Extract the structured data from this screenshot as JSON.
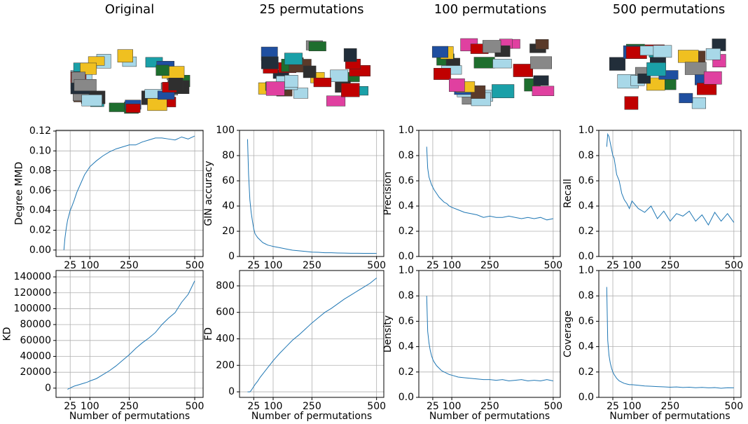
{
  "columns": [
    {
      "title": "Original"
    },
    {
      "title": "25 permutations"
    },
    {
      "title": "100 permutations"
    },
    {
      "title": "500 permutations"
    }
  ],
  "chart_data": [
    {
      "type": "line",
      "ylabel": "Degree MMD",
      "color": "#1f77b4",
      "grid": true,
      "x": [
        1,
        5,
        10,
        15,
        20,
        25,
        30,
        40,
        50,
        60,
        70,
        80,
        90,
        100,
        125,
        150,
        175,
        200,
        225,
        250,
        275,
        300,
        325,
        350,
        375,
        400,
        425,
        450,
        475,
        500
      ],
      "values": [
        0,
        0.012,
        0.022,
        0.03,
        0.035,
        0.04,
        0.043,
        0.05,
        0.058,
        0.064,
        0.07,
        0.076,
        0.08,
        0.084,
        0.09,
        0.095,
        0.099,
        0.102,
        0.104,
        0.106,
        0.106,
        0.109,
        0.111,
        0.113,
        0.113,
        0.112,
        0.111,
        0.114,
        0.112,
        0.115
      ],
      "xlim": [
        -29,
        532
      ],
      "xticks": [
        25,
        100,
        250,
        500
      ],
      "ylim": [
        -0.0065,
        0.1207
      ],
      "yticks": [
        {
          "value": 0,
          "label": "0.00"
        },
        {
          "value": 0.02,
          "label": "0.02"
        },
        {
          "value": 0.04,
          "label": "0.04"
        },
        {
          "value": 0.06,
          "label": "0.06"
        },
        {
          "value": 0.08,
          "label": "0.08"
        },
        {
          "value": 0.1,
          "label": "0.10"
        },
        {
          "value": 0.12,
          "label": "0.12"
        }
      ]
    },
    {
      "type": "line",
      "ylabel": "GIN accuracy",
      "color": "#1f77b4",
      "grid": true,
      "x": [
        1,
        5,
        10,
        15,
        20,
        25,
        30,
        40,
        50,
        60,
        70,
        80,
        90,
        100,
        125,
        150,
        175,
        200,
        225,
        250,
        275,
        300,
        325,
        350,
        375,
        400,
        425,
        450,
        475,
        500
      ],
      "values": [
        93,
        65,
        45,
        35,
        28,
        22,
        18,
        15,
        13,
        11,
        10,
        9,
        8.5,
        8,
        7,
        6,
        5,
        4.5,
        4,
        3.5,
        3.3,
        3,
        3,
        2.8,
        2.7,
        2.6,
        2.6,
        2.5,
        2.5,
        2.4
      ],
      "xlim": [
        -30,
        528
      ],
      "xticks": [
        25,
        100,
        250,
        500
      ],
      "ylim": [
        0,
        100
      ],
      "yticks": [
        0,
        20,
        40,
        60,
        80,
        100
      ]
    },
    {
      "type": "line",
      "ylabel": "Precision",
      "color": "#1f77b4",
      "grid": true,
      "x": [
        1,
        5,
        10,
        15,
        20,
        25,
        30,
        40,
        50,
        60,
        70,
        80,
        90,
        100,
        125,
        150,
        175,
        200,
        225,
        250,
        275,
        300,
        325,
        350,
        375,
        400,
        425,
        450,
        475,
        500
      ],
      "values": [
        0.87,
        0.7,
        0.63,
        0.6,
        0.57,
        0.55,
        0.53,
        0.5,
        0.47,
        0.45,
        0.43,
        0.42,
        0.4,
        0.39,
        0.37,
        0.35,
        0.34,
        0.33,
        0.31,
        0.32,
        0.31,
        0.31,
        0.32,
        0.31,
        0.3,
        0.31,
        0.3,
        0.31,
        0.29,
        0.3
      ],
      "xlim": [
        -30,
        528
      ],
      "xticks": [
        25,
        100,
        250,
        500
      ],
      "ylim": [
        0,
        1
      ],
      "yticks": [
        {
          "value": 0,
          "label": "0.0"
        },
        0.2,
        0.4,
        0.6,
        0.8,
        {
          "value": 1,
          "label": "1.0"
        }
      ]
    },
    {
      "type": "line",
      "ylabel": "Recall",
      "color": "#1f77b4",
      "grid": true,
      "x": [
        1,
        5,
        10,
        15,
        20,
        25,
        30,
        40,
        50,
        60,
        70,
        80,
        90,
        100,
        125,
        150,
        175,
        200,
        225,
        250,
        275,
        300,
        325,
        350,
        375,
        400,
        425,
        450,
        475,
        500
      ],
      "values": [
        0.87,
        0.97,
        0.95,
        0.9,
        0.85,
        0.8,
        0.78,
        0.65,
        0.6,
        0.5,
        0.45,
        0.42,
        0.38,
        0.44,
        0.38,
        0.35,
        0.4,
        0.3,
        0.36,
        0.28,
        0.34,
        0.32,
        0.36,
        0.28,
        0.33,
        0.25,
        0.35,
        0.28,
        0.34,
        0.27
      ],
      "xlim": [
        -30,
        528
      ],
      "xticks": [
        25,
        100,
        250,
        500
      ],
      "ylim": [
        0,
        1
      ],
      "yticks": [
        {
          "value": 0,
          "label": "0.0"
        },
        0.2,
        0.4,
        0.6,
        0.8,
        {
          "value": 1,
          "label": "1.0"
        }
      ]
    },
    {
      "type": "line",
      "ylabel": "KD",
      "xlabel": "Number of permutations",
      "color": "#1f77b4",
      "grid": true,
      "x": [
        15,
        20,
        25,
        30,
        40,
        50,
        60,
        70,
        80,
        90,
        100,
        125,
        150,
        175,
        200,
        225,
        250,
        275,
        300,
        325,
        350,
        375,
        400,
        425,
        450,
        475,
        500
      ],
      "values": [
        -1500,
        -500,
        0,
        1000,
        2500,
        3500,
        4500,
        5500,
        6500,
        7500,
        9000,
        12000,
        17000,
        22000,
        28000,
        35000,
        42000,
        50000,
        57000,
        63000,
        70000,
        80000,
        88000,
        95000,
        108000,
        118000,
        135000
      ],
      "xlim": [
        -29,
        532
      ],
      "xticks": [
        25,
        100,
        250,
        500
      ],
      "ylim": [
        -11600,
        148000
      ],
      "yticks": [
        0,
        20000,
        40000,
        60000,
        80000,
        100000,
        120000,
        140000
      ]
    },
    {
      "type": "line",
      "ylabel": "FD",
      "xlabel": "Number of permutations",
      "color": "#1f77b4",
      "grid": true,
      "x": [
        1,
        10,
        15,
        20,
        25,
        30,
        40,
        50,
        60,
        70,
        80,
        90,
        100,
        125,
        150,
        175,
        200,
        225,
        250,
        275,
        300,
        325,
        350,
        375,
        400,
        425,
        450,
        475,
        500
      ],
      "values": [
        0,
        0,
        10,
        25,
        40,
        55,
        80,
        110,
        135,
        160,
        185,
        210,
        235,
        290,
        340,
        390,
        430,
        475,
        520,
        560,
        600,
        630,
        665,
        700,
        730,
        760,
        790,
        820,
        860
      ],
      "xlim": [
        -30,
        528
      ],
      "xticks": [
        25,
        100,
        250,
        500
      ],
      "ylim": [
        -42,
        916
      ],
      "yticks": [
        0,
        200,
        400,
        600,
        800
      ]
    },
    {
      "type": "line",
      "ylabel": "Density",
      "xlabel": "Number of permutations",
      "color": "#1f77b4",
      "grid": true,
      "x": [
        1,
        5,
        10,
        15,
        20,
        25,
        30,
        40,
        50,
        60,
        70,
        80,
        90,
        100,
        125,
        150,
        175,
        200,
        225,
        250,
        275,
        300,
        325,
        350,
        375,
        400,
        425,
        450,
        475,
        500
      ],
      "values": [
        0.8,
        0.52,
        0.43,
        0.37,
        0.33,
        0.3,
        0.28,
        0.25,
        0.23,
        0.21,
        0.2,
        0.19,
        0.18,
        0.175,
        0.16,
        0.155,
        0.15,
        0.145,
        0.14,
        0.14,
        0.135,
        0.14,
        0.13,
        0.135,
        0.14,
        0.13,
        0.135,
        0.13,
        0.14,
        0.13
      ],
      "xlim": [
        -30,
        528
      ],
      "xticks": [
        25,
        100,
        250,
        500
      ],
      "ylim": [
        0,
        1
      ],
      "yticks": [
        {
          "value": 0,
          "label": "0.0"
        },
        0.2,
        0.4,
        0.6,
        0.8,
        {
          "value": 1,
          "label": "1.0"
        }
      ]
    },
    {
      "type": "line",
      "ylabel": "Coverage",
      "xlabel": "Number of permutations",
      "color": "#1f77b4",
      "grid": true,
      "x": [
        1,
        5,
        10,
        15,
        20,
        25,
        30,
        40,
        50,
        60,
        70,
        80,
        90,
        100,
        125,
        150,
        175,
        200,
        225,
        250,
        275,
        300,
        325,
        350,
        375,
        400,
        425,
        450,
        475,
        500
      ],
      "values": [
        0.87,
        0.45,
        0.33,
        0.27,
        0.23,
        0.2,
        0.18,
        0.15,
        0.13,
        0.12,
        0.11,
        0.105,
        0.1,
        0.1,
        0.095,
        0.09,
        0.088,
        0.085,
        0.083,
        0.08,
        0.082,
        0.078,
        0.08,
        0.076,
        0.079,
        0.075,
        0.077,
        0.072,
        0.076,
        0.075
      ],
      "xlim": [
        -30,
        528
      ],
      "xticks": [
        25,
        100,
        250,
        500
      ],
      "ylim": [
        0,
        1
      ],
      "yticks": [
        {
          "value": 0,
          "label": "0.0"
        },
        0.2,
        0.4,
        0.6,
        0.8,
        {
          "value": 1,
          "label": "1.0"
        }
      ]
    }
  ]
}
